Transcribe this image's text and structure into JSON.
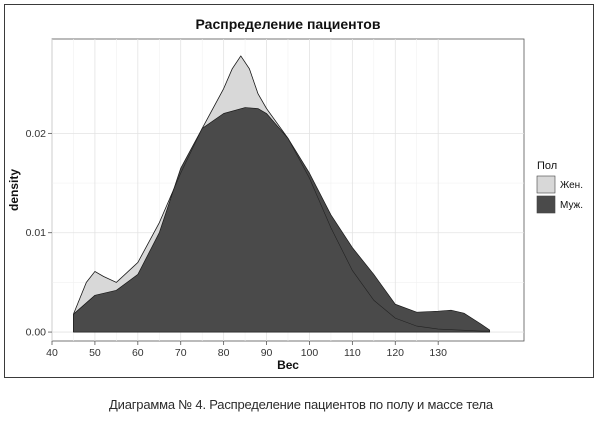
{
  "caption": "Диаграмма № 4. Распределение пациентов по полу и массе тела",
  "chart_data": {
    "type": "area",
    "title": "Распределение пациентов",
    "xlabel": "Вес",
    "ylabel": "density",
    "xlim": [
      40,
      150
    ],
    "ylim": [
      -0.0009,
      0.0295
    ],
    "x_ticks": [
      40,
      50,
      60,
      70,
      80,
      90,
      100,
      110,
      120,
      130
    ],
    "y_ticks": [
      0.0,
      0.01,
      0.02
    ],
    "y_tick_labels": [
      "0.00",
      "0.01",
      "0.02"
    ],
    "grid": true,
    "legend": {
      "title": "Пол",
      "position": "right",
      "entries": [
        "Жен.",
        "Муж."
      ]
    },
    "series": [
      {
        "name": "Жен.",
        "color": "#d8d8d8",
        "x": [
          45,
          48,
          50,
          52,
          55,
          60,
          65,
          70,
          75,
          80,
          82,
          84,
          86,
          88,
          90,
          95,
          100,
          105,
          110,
          115,
          120,
          125,
          130,
          135,
          140,
          142
        ],
        "y": [
          0.0018,
          0.005,
          0.0061,
          0.0056,
          0.005,
          0.007,
          0.011,
          0.016,
          0.0205,
          0.0245,
          0.0265,
          0.0278,
          0.0265,
          0.024,
          0.0225,
          0.0195,
          0.0155,
          0.0105,
          0.0062,
          0.0032,
          0.0014,
          0.0006,
          0.0003,
          0.0002,
          0.0001,
          0.0001
        ]
      },
      {
        "name": "Муж.",
        "color": "#4a4a4a",
        "x": [
          45,
          50,
          55,
          60,
          65,
          70,
          75,
          80,
          85,
          88,
          90,
          95,
          100,
          105,
          110,
          115,
          120,
          125,
          130,
          133,
          136,
          140,
          142
        ],
        "y": [
          0.0018,
          0.0037,
          0.0042,
          0.0058,
          0.01,
          0.0165,
          0.0205,
          0.022,
          0.0226,
          0.0225,
          0.022,
          0.0195,
          0.016,
          0.0118,
          0.0085,
          0.0058,
          0.0028,
          0.002,
          0.0021,
          0.0022,
          0.0019,
          0.0008,
          0.0002
        ]
      }
    ]
  }
}
